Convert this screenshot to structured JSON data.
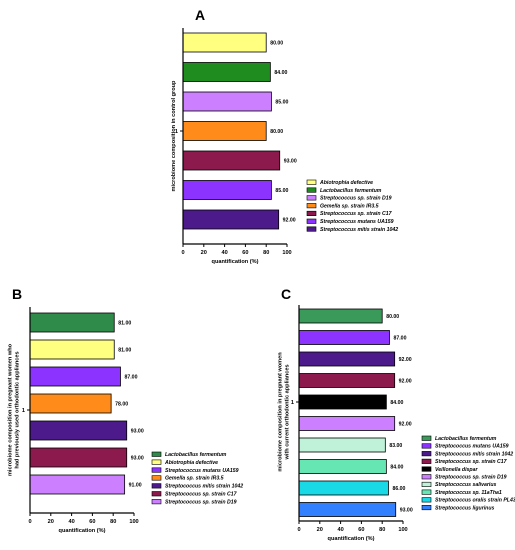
{
  "chart_data": [
    {
      "panel": "A",
      "type": "bar",
      "orientation": "horizontal",
      "ylabel": "microbiome composition in control group",
      "xlabel": "quantification (%)",
      "y_tick": "1",
      "xlim": [
        0,
        100
      ],
      "xticks": [
        0,
        20,
        40,
        60,
        80,
        100
      ],
      "categories": [
        "Abiotrophia defective",
        "Lactobacillus fermentum",
        "Streptococcus sp. strain D19",
        "Gemella sp. strain IR3.5",
        "Streptococcus sp. strain C17",
        "Streptococcus mutans UA159",
        "Streptococcus mitis strain 1042"
      ],
      "values": [
        80,
        84,
        85,
        80,
        93,
        85,
        92
      ],
      "value_labels": [
        "80.00",
        "84.00",
        "85.00",
        "80.00",
        "93.00",
        "85.00",
        "92.00"
      ],
      "colors": [
        "#ffff80",
        "#1e8c1e",
        "#cc80ff",
        "#ff8c1a",
        "#8c1a4d",
        "#8c33ff",
        "#4d1a8c"
      ],
      "legend_placement": "right"
    },
    {
      "panel": "B",
      "type": "bar",
      "orientation": "horizontal",
      "ylabel": "microbiome composition in pregnant women who had previously used orthodontic appliances",
      "xlabel": "quantification (%)",
      "y_tick": "1",
      "xlim": [
        0,
        100
      ],
      "xticks": [
        0,
        20,
        40,
        60,
        80,
        100
      ],
      "categories": [
        "Lactobacillus fermentum",
        "Abiotrophia defective",
        "Streptococcus mutans UA159",
        "Gemella sp. strain IR3.5",
        "Streptococcus mitis strain 1042",
        "Streptococcus sp. strain C17",
        "Streptococcus sp. strain D19"
      ],
      "values": [
        81,
        81,
        87,
        78,
        93,
        93,
        91
      ],
      "value_labels": [
        "81.00",
        "81.00",
        "87.00",
        "78.00",
        "93.00",
        "93.00",
        "91.00"
      ],
      "colors": [
        "#2e8b4a",
        "#ffff80",
        "#8c33ff",
        "#ff8c1a",
        "#4d1a8c",
        "#8c1a4d",
        "#cc80ff"
      ],
      "legend_placement": "right"
    },
    {
      "panel": "C",
      "type": "bar",
      "orientation": "horizontal",
      "ylabel": "microbiome composition in pregnant women with current orthodontic appliances",
      "xlabel": "quantification (%)",
      "y_tick": "1",
      "xlim": [
        0,
        100
      ],
      "xticks": [
        0,
        20,
        40,
        60,
        80,
        100
      ],
      "categories": [
        "Lactobacillus fermentum",
        "Streptococcus mutans UA159",
        "Streptococcus mitis strain 1042",
        "Streptococcus sp. strain C17",
        "Veillonella dispar",
        "Streptococcus sp. strain D19",
        "Streptococcus salivarius",
        "Streptococcus sp. 11aTha1",
        "Streptococcus oralis strain PL430",
        "Streptococcus ligurinus"
      ],
      "values": [
        80,
        87,
        92,
        92,
        84,
        92,
        83,
        84,
        86,
        93
      ],
      "value_labels": [
        "80.00",
        "87.00",
        "92.00",
        "92.00",
        "84.00",
        "92.00",
        "83.00",
        "84.00",
        "86.00",
        "93.00"
      ],
      "colors": [
        "#3a9a5a",
        "#8c33ff",
        "#4d1a8c",
        "#8c1a4d",
        "#000000",
        "#cc80ff",
        "#bff2d9",
        "#66e6b3",
        "#1ad9e6",
        "#3380ff"
      ],
      "legend_placement": "right"
    }
  ]
}
